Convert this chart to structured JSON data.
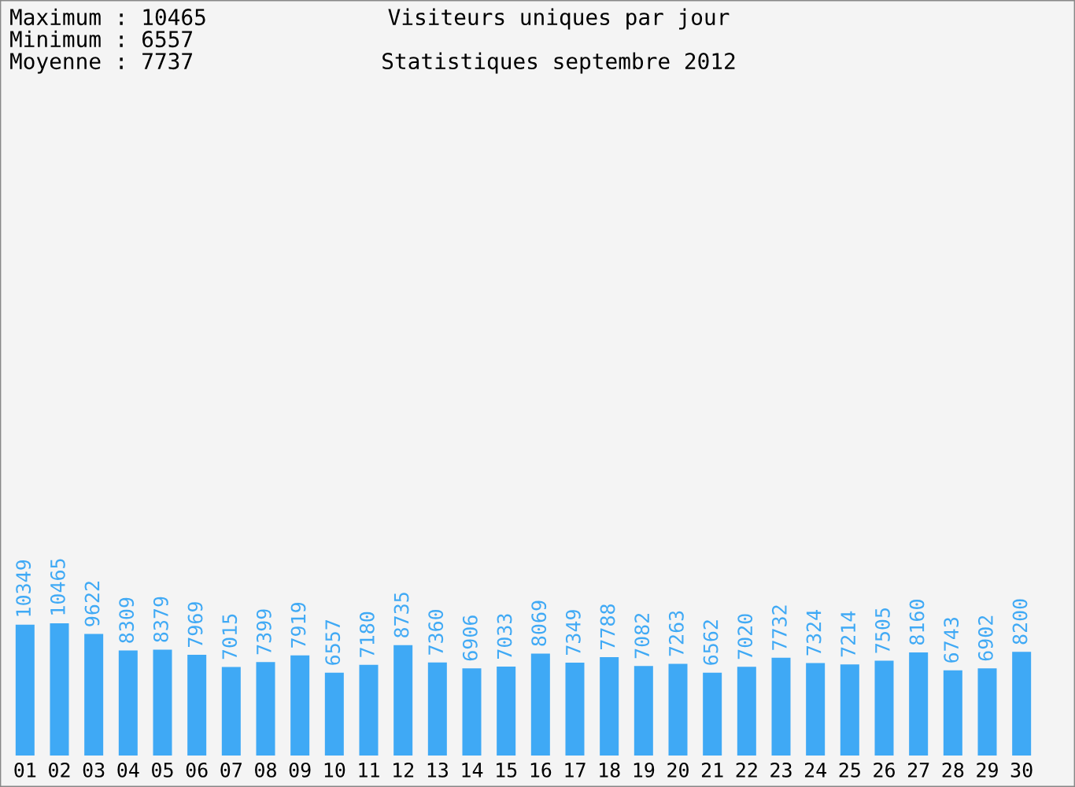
{
  "chart_data": {
    "type": "bar",
    "title": "Visiteurs uniques par jour",
    "subtitle": "Statistiques septembre 2012",
    "annotations": [
      "Maximum : 10465",
      "Minimum : 6557",
      "Moyenne : 7737"
    ],
    "categories": [
      "01",
      "02",
      "03",
      "04",
      "05",
      "06",
      "07",
      "08",
      "09",
      "10",
      "11",
      "12",
      "13",
      "14",
      "15",
      "16",
      "17",
      "18",
      "19",
      "20",
      "21",
      "22",
      "23",
      "24",
      "25",
      "26",
      "27",
      "28",
      "29",
      "30"
    ],
    "values": [
      10349,
      10465,
      9622,
      8309,
      8379,
      7969,
      7015,
      7399,
      7919,
      6557,
      7180,
      8735,
      7360,
      6906,
      7033,
      8069,
      7349,
      7788,
      7082,
      7263,
      6562,
      7020,
      7732,
      7324,
      7214,
      7505,
      8160,
      6743,
      6902,
      8200
    ],
    "color": "#3fa9f5",
    "data_labels": true,
    "grid": false,
    "legend": false
  }
}
